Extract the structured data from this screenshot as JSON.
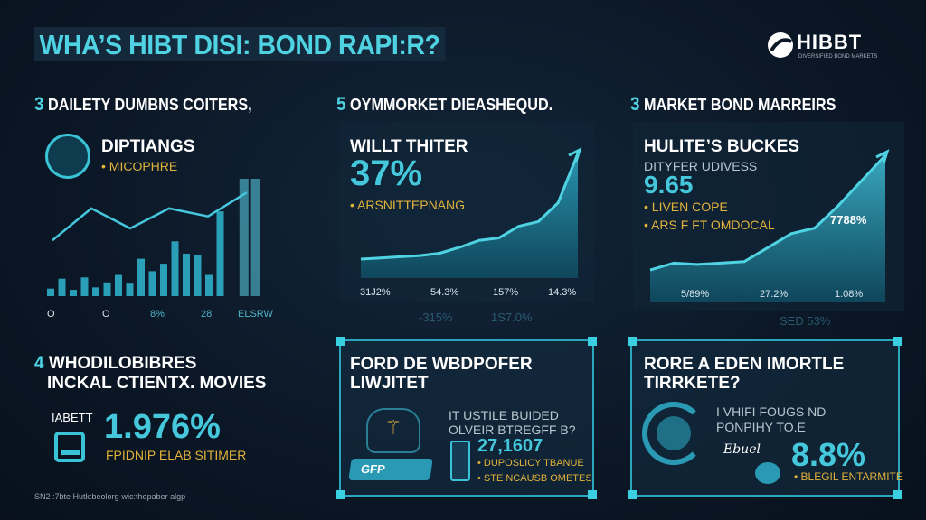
{
  "header": {
    "title": "WHA’S HIBT DISI: BOND RAPI:R?",
    "logo_text": "HIBBT",
    "logo_tagline": "DIVERSIFIED BOND MARKETS"
  },
  "sections": [
    {
      "num": "3",
      "label": "DAILETY DUMBNS COITERS,"
    },
    {
      "num": "5",
      "label": "OYMMORKET DIEASHEQUD."
    },
    {
      "num": "3",
      "label": "MARKET BOND MARREIRS"
    }
  ],
  "panel1": {
    "heading": "DIPTIANGS",
    "bullet": "• MICOPHRE",
    "x_labels": [
      "O",
      "O",
      "8%",
      "28",
      "ELSRW"
    ]
  },
  "panel2": {
    "heading": "WILLT THITER",
    "value": "37%",
    "bullet": "• ARSNITTEPNANG",
    "x_labels": [
      "31J2%",
      "54.3%",
      "157%",
      "14.3%"
    ],
    "faint_labels": [
      "-315%",
      "1S7.0%"
    ]
  },
  "panel3": {
    "heading": "HULITE’S BUCKES",
    "sub": "DITYFER UDIVESS",
    "value": "9.65",
    "bullets": [
      "• LIVEN COPE",
      "• ARS F FT OMDOCAL"
    ],
    "callout": "7788%",
    "x_labels": [
      "5/89%",
      "27.2%",
      "1.08%"
    ],
    "faint_label": "SED 53%"
  },
  "panel4": {
    "heading1": "WHODILOBIBRES",
    "num": "4",
    "heading2": "INCKAL CTIENTX. MOVIES",
    "icon_label": "IABETT",
    "value": "1.976%",
    "bullet": "FPIDNIP ELAB SITIMER",
    "footnote": "SN2 :7bte Hutk:beolorg-wic:thopaber algp"
  },
  "panel5": {
    "heading": "FORD DE WBDPOFER",
    "heading2": "LIWJITET",
    "icon_label": "GFP",
    "text1": "IT USTILE BUIDED",
    "text2": "OLVEIR BTREGFF B?",
    "value": "27,1607",
    "bullets": [
      "• DUPOSLICY TBANUE",
      "• STE NCAUSB OMETES"
    ]
  },
  "panel6": {
    "heading": "RORE A EDEN IMORTLE",
    "heading2": "TIRRKETE?",
    "text1": "I VHIFI FOUGS ND",
    "text2": "PONPIHY TO.E",
    "script_label": "Ebuel",
    "value": "8.8%",
    "bullet": "• BLEGIL ENTARMITE"
  },
  "colors": {
    "accent": "#45c8dc",
    "highlight": "#e2b23a",
    "background": "#0b1726"
  },
  "chart_data": [
    {
      "type": "bar",
      "title": "DIPTIANGS",
      "values": [
        6,
        14,
        5,
        15,
        7,
        11,
        17,
        10,
        30,
        20,
        26,
        44,
        34,
        33,
        17,
        68,
        100,
        100
      ],
      "line": [
        28,
        44,
        34,
        44,
        40,
        52
      ],
      "ylim": [
        0,
        100
      ]
    },
    {
      "type": "area",
      "title": "WILLT THITER",
      "values": [
        10,
        11,
        12,
        13,
        15,
        20,
        26,
        28,
        38,
        42,
        58,
        100
      ],
      "ylim": [
        0,
        100
      ]
    },
    {
      "type": "area",
      "title": "HULITE’S BUCKES",
      "values": [
        18,
        23,
        22,
        23,
        24,
        34,
        44,
        48,
        64,
        82,
        100
      ],
      "ylim": [
        0,
        100
      ]
    }
  ]
}
